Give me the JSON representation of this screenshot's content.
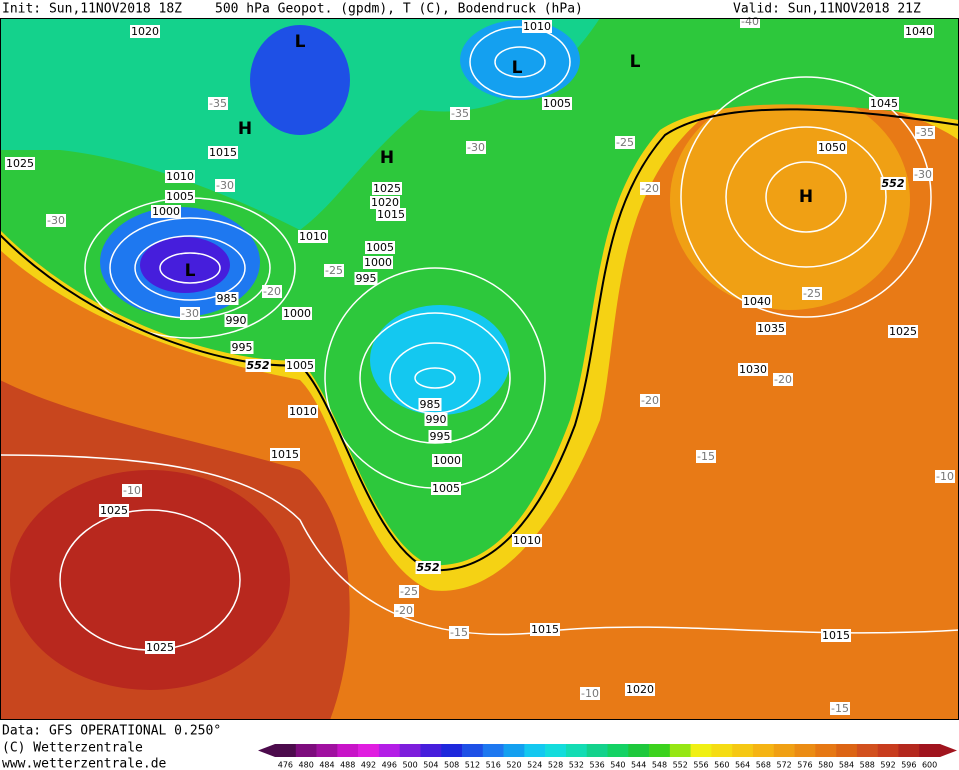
{
  "header": {
    "init": "Init: Sun,11NOV2018 18Z",
    "title": "500 hPa Geopot. (gpdm), T (C), Bodendruck (hPa)",
    "valid": "Valid: Sun,11NOV2018 21Z"
  },
  "footer": {
    "data": "Data: GFS OPERATIONAL 0.250°",
    "copyright": "(C) Wetterzentrale",
    "url": "www.wetterzentrale.de"
  },
  "map": {
    "pressure_labels": [
      "1020",
      "1010",
      "1040",
      "1005",
      "1045",
      "1015",
      "1050",
      "1025",
      "1010",
      "1005",
      "1000",
      "1025",
      "1020",
      "1015",
      "1010",
      "1005",
      "1000",
      "995",
      "1040",
      "985",
      "990",
      "1000",
      "1035",
      "1025",
      "995",
      "1005",
      "1030",
      "1010",
      "985",
      "990",
      "995",
      "1015",
      "1000",
      "1005",
      "1025",
      "1010",
      "1015",
      "1025",
      "1015",
      "1020"
    ],
    "temperature_labels": [
      "-35",
      "-35",
      "-30",
      "-25",
      "-35",
      "-30",
      "-30",
      "-30",
      "-20",
      "-25",
      "-20",
      "-30",
      "-25",
      "-20",
      "-20",
      "-15",
      "-10",
      "-25",
      "-20",
      "-15",
      "-10",
      "-15",
      "-10",
      "-40"
    ],
    "contour_labels": [
      "552",
      "552",
      "552"
    ],
    "centers": [
      "L",
      "L",
      "L",
      "H",
      "H",
      "L",
      "H"
    ]
  },
  "colorbar": {
    "levels": [
      476,
      480,
      484,
      488,
      492,
      496,
      500,
      504,
      508,
      512,
      516,
      520,
      524,
      528,
      532,
      536,
      540,
      544,
      548,
      552,
      556,
      560,
      564,
      568,
      572,
      576,
      580,
      584,
      588,
      592,
      596,
      600
    ],
    "colors": [
      "#4c0b4c",
      "#7d0c7d",
      "#a010a0",
      "#c814c8",
      "#e01ee0",
      "#b41ee6",
      "#7d1edc",
      "#461edc",
      "#1e28dc",
      "#1e50e6",
      "#1e78f0",
      "#14a0f0",
      "#14c8f0",
      "#14dcdc",
      "#14dcb4",
      "#14d28c",
      "#14d264",
      "#1ec83c",
      "#3cd21e",
      "#96e614",
      "#f0f014",
      "#f5dc14",
      "#f5c814",
      "#f5b414",
      "#f0a014",
      "#eb8c14",
      "#e67814",
      "#dc6414",
      "#d2501e",
      "#c83c1e",
      "#b4281e",
      "#a0141e"
    ]
  }
}
